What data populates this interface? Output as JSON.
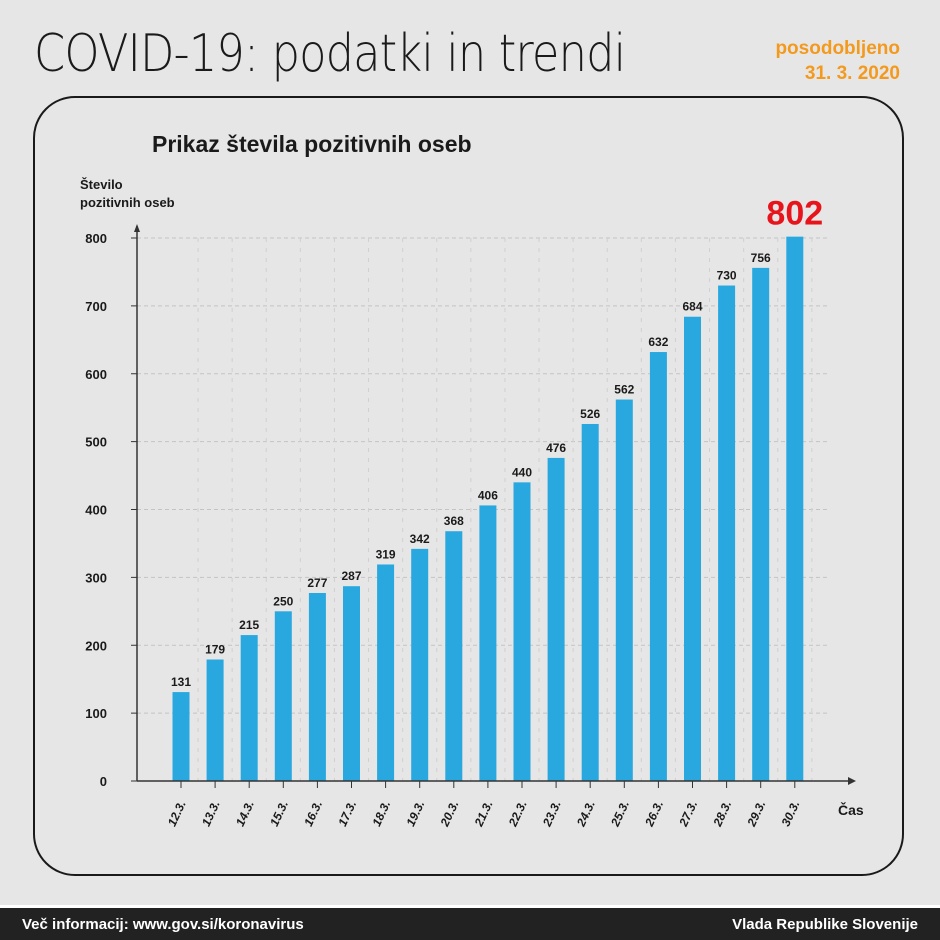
{
  "header": {
    "title": "COVID-19: podatki in trendi",
    "updated_label": "posodobljeno",
    "updated_date": "31. 3. 2020"
  },
  "footer": {
    "left": "Več informacij: www.gov.si/koronavirus",
    "right": "Vlada Republike Slovenije"
  },
  "chart_data": {
    "type": "bar",
    "title": "Prikaz števila pozitivnih oseb",
    "ylabel_line1": "Število",
    "ylabel_line2": "pozitivnih oseb",
    "xlabel": "Čas",
    "ylim": [
      0,
      800
    ],
    "yticks": [
      0,
      100,
      200,
      300,
      400,
      500,
      600,
      700,
      800
    ],
    "grid": true,
    "bar_color": "#29a8e0",
    "highlight_color": "#e8141c",
    "highlight_label": "802",
    "categories": [
      "12.3.",
      "13.3.",
      "14.3.",
      "15.3.",
      "16.3.",
      "17.3.",
      "18.3.",
      "19.3.",
      "20.3.",
      "21.3.",
      "22.3.",
      "23.3.",
      "24.3.",
      "25.3.",
      "26.3.",
      "27.3.",
      "28.3.",
      "29.3.",
      "30.3."
    ],
    "values": [
      131,
      179,
      215,
      250,
      277,
      287,
      319,
      342,
      368,
      406,
      440,
      476,
      526,
      562,
      632,
      684,
      730,
      756,
      802
    ]
  }
}
